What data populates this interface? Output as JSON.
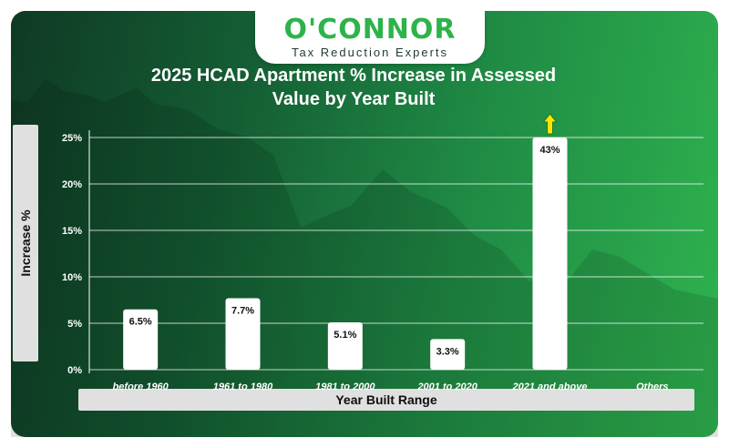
{
  "logo": {
    "name": "O'CONNOR",
    "tagline": "Tax Reduction Experts"
  },
  "chart_data": {
    "type": "bar",
    "title": "2025 HCAD Apartment % Increase in Assessed Value by Year Built",
    "xlabel": "Year Built Range",
    "ylabel": "Increase %",
    "categories": [
      "before 1960",
      "1961 to 1980",
      "1981 to 2000",
      "2001 to 2020",
      "2021 and above",
      "Others"
    ],
    "values": [
      6.5,
      7.7,
      5.1,
      3.3,
      43,
      null
    ],
    "value_labels": [
      "6.5%",
      "7.7%",
      "5.1%",
      "3.3%",
      "43%",
      ""
    ],
    "ylim": [
      0,
      25
    ],
    "yticks": [
      "0%",
      "5%",
      "10%",
      "15%",
      "20%",
      "25%"
    ],
    "grid": true,
    "clipped_bar_arrow": "up-arrow-icon",
    "colors": {
      "bar": "#ffffff",
      "arrow": "#ffe600",
      "arrow_outline": "#1f7a1f",
      "grid": "#ffffff",
      "logo": "#2db34a"
    }
  }
}
